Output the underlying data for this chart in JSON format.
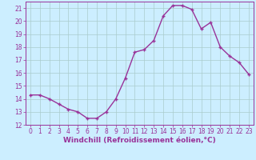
{
  "x": [
    0,
    1,
    2,
    3,
    4,
    5,
    6,
    7,
    8,
    9,
    10,
    11,
    12,
    13,
    14,
    15,
    16,
    17,
    18,
    19,
    20,
    21,
    22,
    23
  ],
  "y": [
    14.3,
    14.3,
    14.0,
    13.6,
    13.2,
    13.0,
    12.5,
    12.5,
    13.0,
    14.0,
    15.6,
    17.6,
    17.8,
    18.5,
    20.4,
    21.2,
    21.2,
    20.9,
    19.4,
    19.9,
    18.0,
    17.3,
    16.8,
    15.9
  ],
  "line_color": "#993399",
  "marker": "+",
  "marker_size": 3,
  "linewidth": 1.0,
  "bg_color": "#cceeff",
  "grid_color": "#aacccc",
  "xlabel": "Windchill (Refroidissement éolien,°C)",
  "xlabel_color": "#993399",
  "xlabel_fontsize": 6.5,
  "tick_color": "#993399",
  "tick_fontsize": 5.5,
  "ylim": [
    12,
    21.5
  ],
  "xlim": [
    -0.5,
    23.5
  ],
  "yticks": [
    12,
    13,
    14,
    15,
    16,
    17,
    18,
    19,
    20,
    21
  ],
  "xticks": [
    0,
    1,
    2,
    3,
    4,
    5,
    6,
    7,
    8,
    9,
    10,
    11,
    12,
    13,
    14,
    15,
    16,
    17,
    18,
    19,
    20,
    21,
    22,
    23
  ]
}
